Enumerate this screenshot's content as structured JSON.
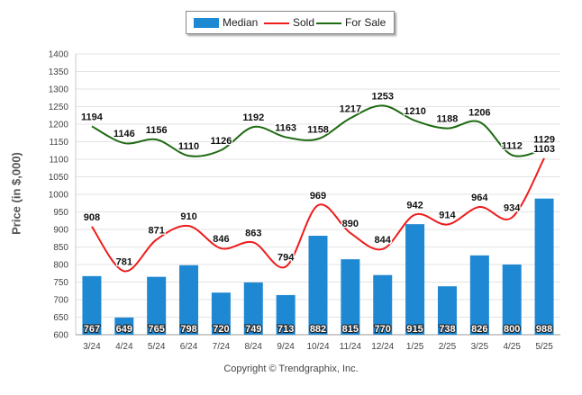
{
  "chart_data": {
    "type": "bar",
    "categories": [
      "3/24",
      "4/24",
      "5/24",
      "6/24",
      "7/24",
      "8/24",
      "9/24",
      "10/24",
      "11/24",
      "12/24",
      "1/25",
      "2/25",
      "3/25",
      "4/25",
      "5/25"
    ],
    "series": [
      {
        "name": "Median",
        "type": "bar",
        "color": "#1e88d2",
        "values": [
          767,
          649,
          765,
          798,
          720,
          749,
          713,
          882,
          815,
          770,
          915,
          738,
          826,
          800,
          988
        ]
      },
      {
        "name": "Sold",
        "type": "line",
        "color": "#ee1c1c",
        "values": [
          908,
          781,
          871,
          910,
          846,
          863,
          794,
          969,
          890,
          844,
          942,
          914,
          964,
          934,
          1103
        ]
      },
      {
        "name": "For Sale",
        "type": "line",
        "color": "#1e6b12",
        "values": [
          1194,
          1146,
          1156,
          1110,
          1126,
          1192,
          1163,
          1158,
          1217,
          1253,
          1210,
          1188,
          1206,
          1112,
          1129
        ]
      }
    ],
    "ylabel": "Price (in $,000)",
    "ylim": [
      600,
      1400
    ],
    "yticks": [
      600,
      650,
      700,
      750,
      800,
      850,
      900,
      950,
      1000,
      1050,
      1100,
      1150,
      1200,
      1250,
      1300,
      1350,
      1400
    ],
    "grid": true,
    "legend_position": "top-center"
  },
  "legend": {
    "median": "Median",
    "sold": "Sold",
    "for_sale": "For Sale"
  },
  "footer": {
    "copyright": "Copyright © Trendgraphix, Inc."
  }
}
